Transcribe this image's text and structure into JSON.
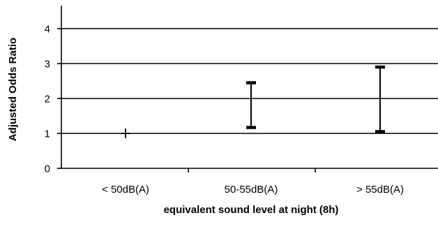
{
  "chart_data": {
    "type": "errorbar",
    "title": "",
    "xlabel": "equivalent sound level at night (8h)",
    "ylabel": "Adjusted Odds Ratio",
    "ylim": [
      0,
      4.4
    ],
    "yticks": [
      0,
      1,
      2,
      3,
      4
    ],
    "grid": "horizontal",
    "legend": "none",
    "categories": [
      "< 50dB(A)",
      "50-55dB(A)",
      "> 55dB(A)"
    ],
    "estimates": [
      {
        "category": "< 50dB(A)",
        "value": 1.0,
        "lower": 1.0,
        "upper": 1.0,
        "marker": "plus"
      },
      {
        "category": "50-55dB(A)",
        "lower": 1.17,
        "upper": 2.45
      },
      {
        "category": "> 55dB(A)",
        "lower": 1.05,
        "upper": 2.9
      }
    ],
    "colors": {
      "axis": "#000000",
      "grid": "#000000",
      "bar": "#000000",
      "background": "#ffffff"
    }
  }
}
